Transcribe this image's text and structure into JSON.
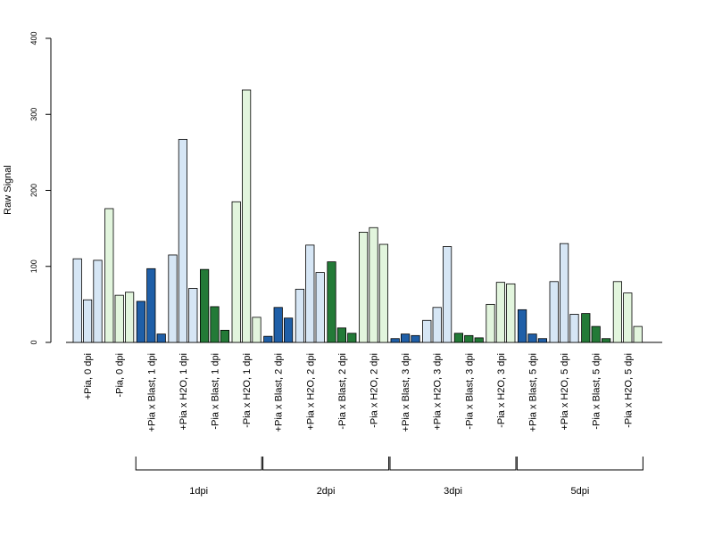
{
  "chart_data": {
    "type": "bar",
    "title": "",
    "xlabel": "",
    "ylabel": "Raw Signal",
    "ylim": [
      0,
      400
    ],
    "yticks": [
      0,
      100,
      200,
      300,
      400
    ],
    "grid": false,
    "colors": {
      "light_blue": "#d6e6f5",
      "light_green": "#e2f5dd",
      "dark_blue": "#1f5fa8",
      "dark_green": "#237a37",
      "stroke": "#000000"
    },
    "categories": [
      "+Pia, 0 dpi",
      "-Pia, 0 dpi",
      "+Pia x Blast, 1 dpi",
      "+Pia x H2O, 1 dpi",
      "-Pia x Blast, 1 dpi",
      "-Pia x H2O, 1 dpi",
      "+Pia x Blast, 2 dpi",
      "+Pia x H2O, 2 dpi",
      "-Pia x Blast, 2 dpi",
      "-Pia x H2O, 2 dpi",
      "+Pia x Blast, 3 dpi",
      "+Pia x H2O, 3 dpi",
      "-Pia x Blast, 3 dpi",
      "-Pia x H2O, 3 dpi",
      "+Pia x Blast, 5 dpi",
      "+Pia x H2O, 5 dpi",
      "-Pia x Blast, 5 dpi",
      "-Pia x H2O, 5 dpi"
    ],
    "category_colors": [
      "light_blue",
      "light_green",
      "dark_blue",
      "light_blue",
      "dark_green",
      "light_green",
      "dark_blue",
      "light_blue",
      "dark_green",
      "light_green",
      "dark_blue",
      "light_blue",
      "dark_green",
      "light_green",
      "dark_blue",
      "light_blue",
      "dark_green",
      "light_green"
    ],
    "values": [
      [
        110,
        56,
        108
      ],
      [
        176,
        62,
        66
      ],
      [
        54,
        97,
        11
      ],
      [
        115,
        267,
        71
      ],
      [
        96,
        47,
        16
      ],
      [
        185,
        332,
        33
      ],
      [
        8,
        46,
        32
      ],
      [
        70,
        128,
        92
      ],
      [
        106,
        19,
        12
      ],
      [
        145,
        151,
        129
      ],
      [
        5,
        11,
        9
      ],
      [
        29,
        46,
        126
      ],
      [
        12,
        9,
        6
      ],
      [
        50,
        79,
        77
      ],
      [
        43,
        11,
        5
      ],
      [
        80,
        130,
        37
      ],
      [
        38,
        21,
        5
      ],
      [
        80,
        65,
        21
      ]
    ],
    "groups": [
      {
        "label": "1dpi",
        "start": 2,
        "end": 5
      },
      {
        "label": "2dpi",
        "start": 6,
        "end": 9
      },
      {
        "label": "3dpi",
        "start": 10,
        "end": 13
      },
      {
        "label": "5dpi",
        "start": 14,
        "end": 17
      }
    ]
  }
}
